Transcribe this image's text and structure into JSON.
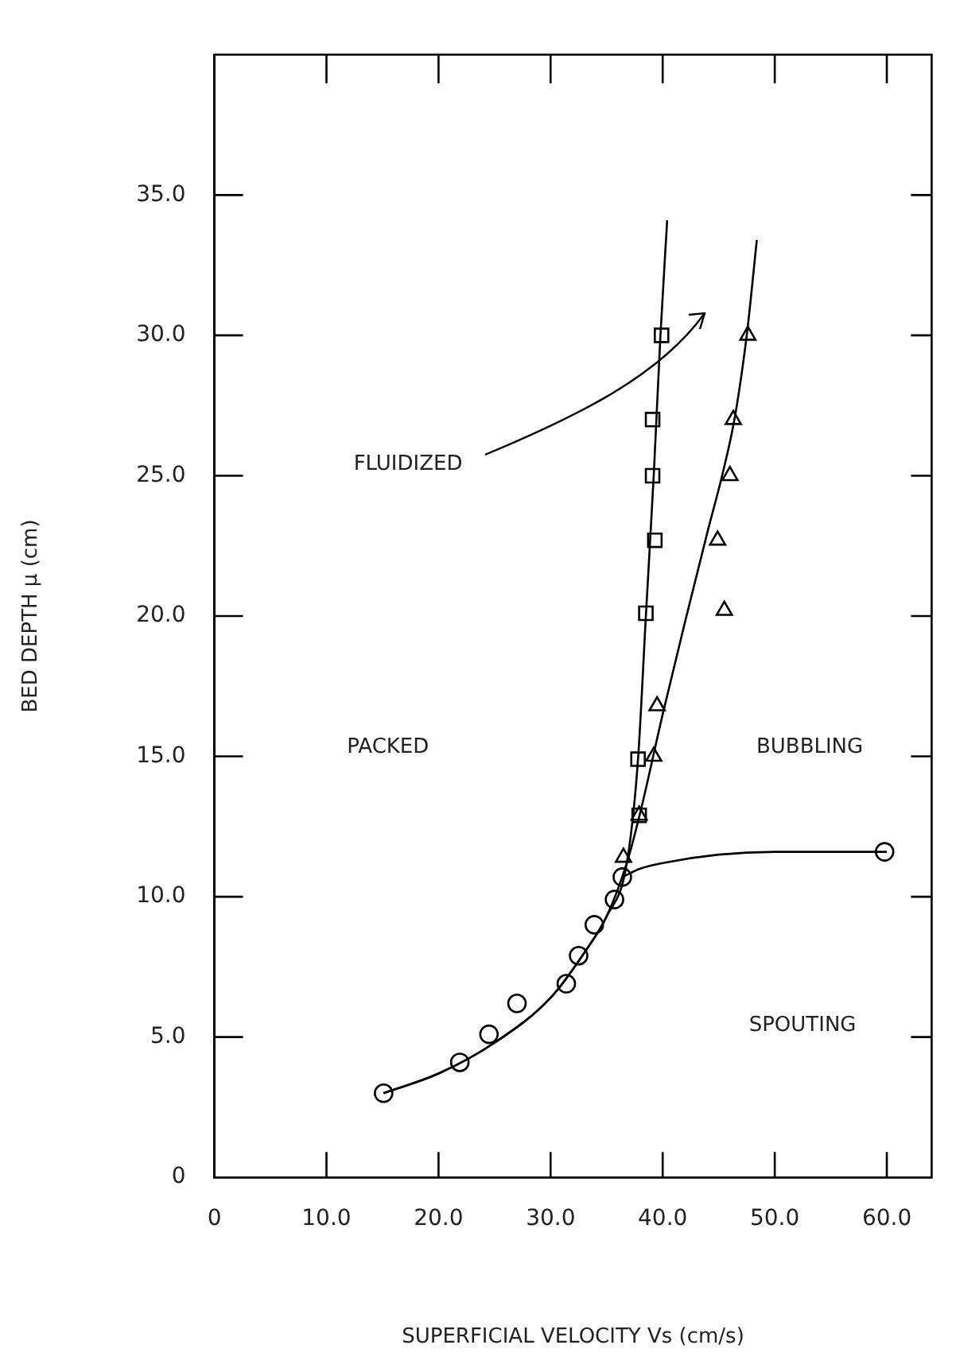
{
  "chart_data": {
    "type": "scatter",
    "xlabel": "SUPERFICIAL VELOCITY Vs (cm/s)",
    "ylabel": "BED DEPTH μ (cm)",
    "xlim": [
      0,
      64
    ],
    "xticks": [
      0,
      {
        "value": 10,
        "label": "10.0"
      },
      {
        "value": 20,
        "label": "20.0"
      },
      {
        "value": 30,
        "label": "30.0"
      },
      {
        "value": 40,
        "label": "40.0"
      },
      {
        "value": 50,
        "label": "50.0"
      },
      {
        "value": 60,
        "label": "60.0"
      }
    ],
    "ylim": [
      0,
      40
    ],
    "yticks": [
      0,
      {
        "value": 5,
        "label": "5.0"
      },
      {
        "value": 10,
        "label": "10.0"
      },
      {
        "value": 15,
        "label": "15.0"
      },
      {
        "value": 20,
        "label": "20.0"
      },
      {
        "value": 25,
        "label": "25.0"
      },
      {
        "value": 30,
        "label": "30.0"
      },
      {
        "value": 35,
        "label": "35.0"
      }
    ],
    "grid": false,
    "legend": false,
    "series": [
      {
        "type": "scatter",
        "marker": "circle",
        "color": "#000000",
        "x": [
          15.1,
          21.9,
          24.5,
          27.0,
          31.4,
          32.5,
          33.9,
          35.7,
          36.4,
          59.8
        ],
        "values": [
          3.0,
          4.1,
          5.1,
          6.2,
          6.9,
          7.9,
          9.0,
          9.9,
          10.7,
          11.6
        ]
      },
      {
        "type": "scatter",
        "marker": "square",
        "color": "#000000",
        "x": [
          37.9,
          37.8,
          38.5,
          39.3,
          39.1,
          39.1,
          39.9
        ],
        "values": [
          12.9,
          14.9,
          20.1,
          22.7,
          25.0,
          27.0,
          30.0
        ]
      },
      {
        "type": "scatter",
        "marker": "triangle",
        "color": "#000000",
        "x": [
          36.5,
          37.9,
          39.2,
          39.5,
          45.5,
          44.9,
          46.0,
          46.3,
          47.6
        ],
        "values": [
          11.4,
          12.9,
          15.0,
          16.8,
          20.2,
          22.7,
          25.0,
          27.0,
          30.0
        ]
      },
      {
        "type": "line",
        "marker": "none",
        "color": "#000000",
        "x": [
          36.4,
          38,
          40,
          45,
          50,
          60
        ],
        "values": [
          10.7,
          11.0,
          11.2,
          11.5,
          11.6,
          11.6
        ]
      },
      {
        "type": "line",
        "marker": "none",
        "color": "#000000",
        "x": [
          15.1,
          20,
          25,
          30,
          33,
          35,
          36.8,
          37.8,
          38.5,
          39.2,
          39.8,
          40.4
        ],
        "values": [
          3.0,
          3.7,
          4.8,
          6.4,
          8.0,
          9.3,
          11.2,
          14.9,
          20.0,
          25.0,
          30.0,
          34.1
        ]
      },
      {
        "type": "line",
        "marker": "none",
        "color": "#000000",
        "x": [
          15.1,
          20,
          25,
          30,
          33,
          35,
          36.8,
          38,
          40,
          42,
          44,
          45.3,
          46.4,
          47.5,
          48.4
        ],
        "values": [
          3.0,
          3.7,
          4.8,
          6.4,
          8.0,
          9.3,
          11.2,
          13.0,
          16.5,
          19.8,
          23.0,
          25.0,
          27.0,
          30.0,
          33.4
        ]
      }
    ],
    "annotations": [
      "FLUIDIZED",
      "PACKED",
      "BUBBLING",
      "SPOUTING"
    ]
  }
}
